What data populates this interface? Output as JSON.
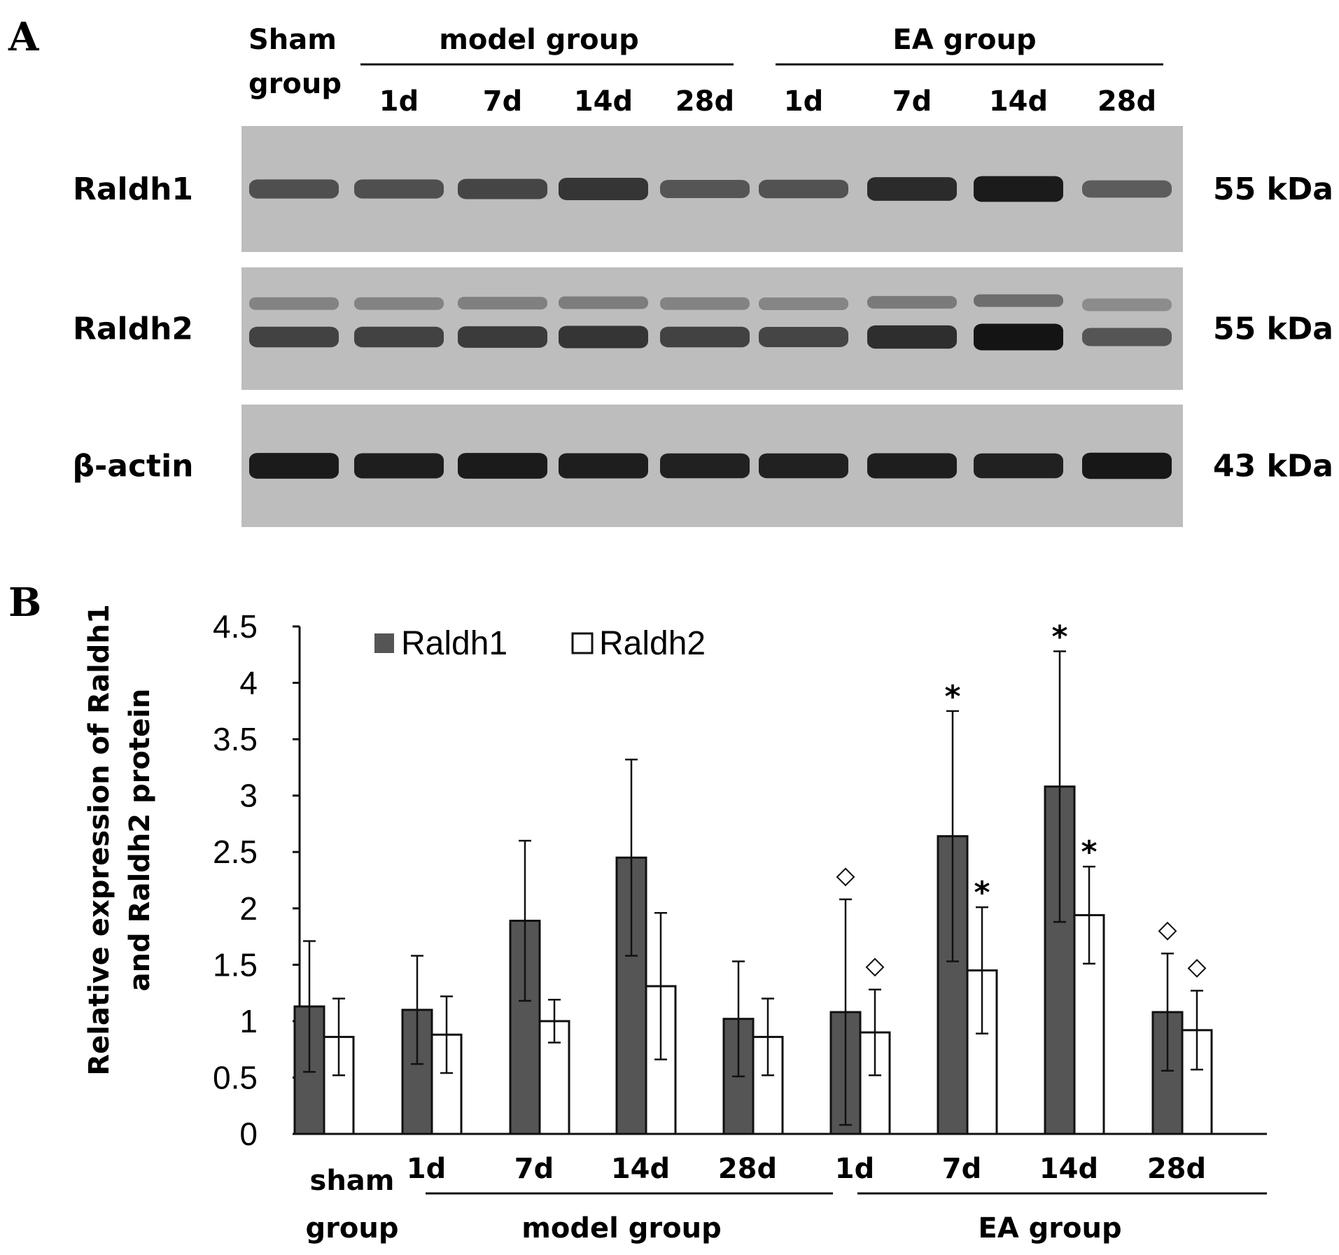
{
  "panel_a": {
    "letter": "A",
    "headers": {
      "sham_line1": "Sham",
      "sham_line2": "group",
      "model": "model group",
      "ea": "EA group",
      "days": [
        "1d",
        "7d",
        "14d",
        "28d",
        "1d",
        "7d",
        "14d",
        "28d"
      ]
    },
    "blots": [
      {
        "protein": "Raldh1",
        "kda": "55 kDa",
        "intensity": [
          0.55,
          0.55,
          0.62,
          0.75,
          0.5,
          0.52,
          0.82,
          0.95,
          0.45
        ],
        "double": false
      },
      {
        "protein": "Raldh2",
        "kda": "55 kDa",
        "intensity": [
          0.65,
          0.65,
          0.7,
          0.75,
          0.65,
          0.62,
          0.8,
          1.0,
          0.5
        ],
        "double": true
      },
      {
        "protein": "β-actin",
        "kda": "43 kDa",
        "intensity": [
          0.95,
          0.92,
          0.95,
          0.92,
          0.9,
          0.9,
          0.92,
          0.9,
          0.98
        ],
        "double": false
      }
    ]
  },
  "panel_b": {
    "letter": "B"
  },
  "chart_data": {
    "type": "bar",
    "categories": [
      "sham group",
      "1d",
      "7d",
      "14d",
      "28d",
      "1d",
      "7d",
      "14d",
      "28d"
    ],
    "group_labels": [
      {
        "name": "sham group",
        "line1": "sham",
        "line2": "group"
      },
      {
        "name": "model group",
        "members": [
          "1d",
          "7d",
          "14d",
          "28d"
        ]
      },
      {
        "name": "EA group",
        "members": [
          "1d",
          "7d",
          "14d",
          "28d"
        ]
      }
    ],
    "series": [
      {
        "name": "Raldh1",
        "color": "#555555",
        "values": [
          1.13,
          1.1,
          1.89,
          2.45,
          1.02,
          1.08,
          2.64,
          3.08,
          1.08
        ],
        "errors": [
          0.58,
          0.48,
          0.71,
          0.87,
          0.51,
          1.0,
          1.11,
          1.2,
          0.52
        ]
      },
      {
        "name": "Raldh2",
        "color": "#ffffff",
        "values": [
          0.86,
          0.88,
          1.0,
          1.31,
          0.86,
          0.9,
          1.45,
          1.94,
          0.92
        ],
        "errors": [
          0.34,
          0.34,
          0.19,
          0.65,
          0.34,
          0.38,
          0.56,
          0.43,
          0.35
        ]
      }
    ],
    "annotations": [
      {
        "category_index": 5,
        "series": "Raldh1",
        "symbol": "◇"
      },
      {
        "category_index": 5,
        "series": "Raldh2",
        "symbol": "◇"
      },
      {
        "category_index": 6,
        "series": "Raldh1",
        "symbol": "*"
      },
      {
        "category_index": 6,
        "series": "Raldh2",
        "symbol": "*"
      },
      {
        "category_index": 7,
        "series": "Raldh1",
        "symbol": "*"
      },
      {
        "category_index": 7,
        "series": "Raldh2",
        "symbol": "*"
      },
      {
        "category_index": 8,
        "series": "Raldh1",
        "symbol": "◇"
      },
      {
        "category_index": 8,
        "series": "Raldh2",
        "symbol": "◇"
      }
    ],
    "ylabel_line1": "Relative expression of Raldh1",
    "ylabel_line2": "and Raldh2 protein",
    "ylim": [
      0,
      4.5
    ],
    "yticks": [
      "0",
      "0.5",
      "1",
      "1.5",
      "2",
      "2.5",
      "3",
      "3.5",
      "4",
      "4.5"
    ],
    "legend_position": "top-left",
    "grid": false
  }
}
